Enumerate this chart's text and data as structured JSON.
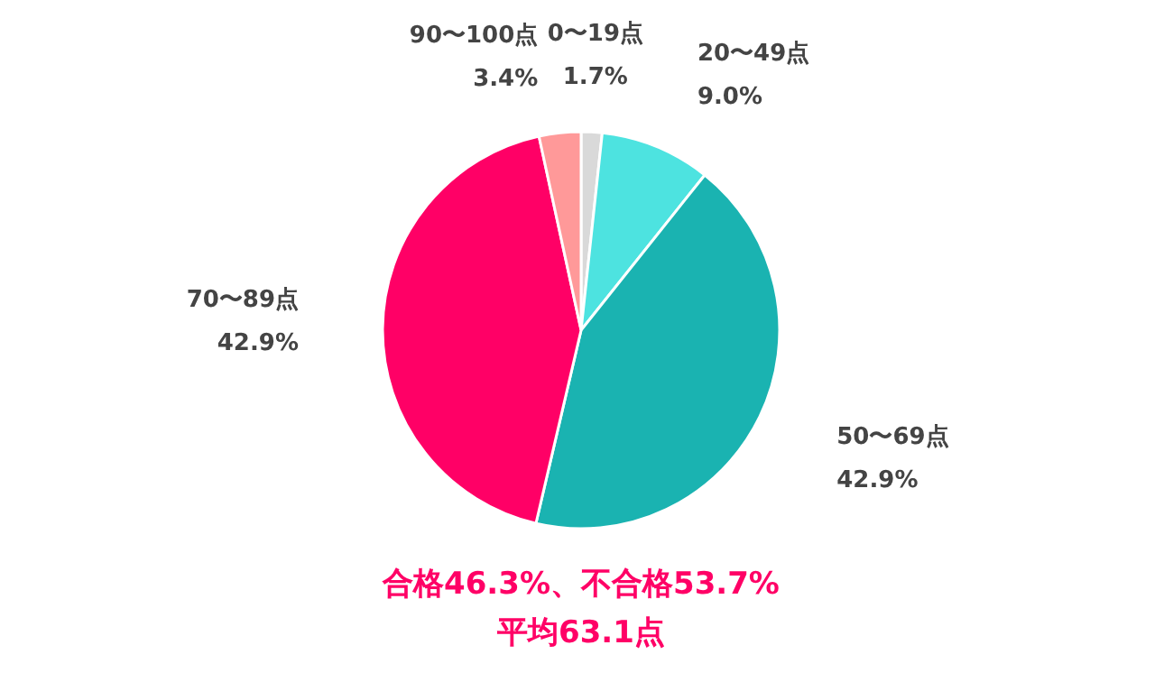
{
  "chart_data": {
    "type": "pie",
    "categories": [
      "0〜19点",
      "20〜49点",
      "50〜69点",
      "70〜89点",
      "90〜100点"
    ],
    "values": [
      1.7,
      9.0,
      42.9,
      42.9,
      3.4
    ],
    "value_labels": [
      "1.7%",
      "9.0%",
      "42.9%",
      "42.9%",
      "3.4%"
    ],
    "colors": [
      "#d9d9d9",
      "#4de3e0",
      "#1ab3b1",
      "#ff0066",
      "#ff9999"
    ],
    "annotations": [
      "合格46.3%、不合格53.7%",
      "平均63.1点"
    ],
    "legend": false
  }
}
